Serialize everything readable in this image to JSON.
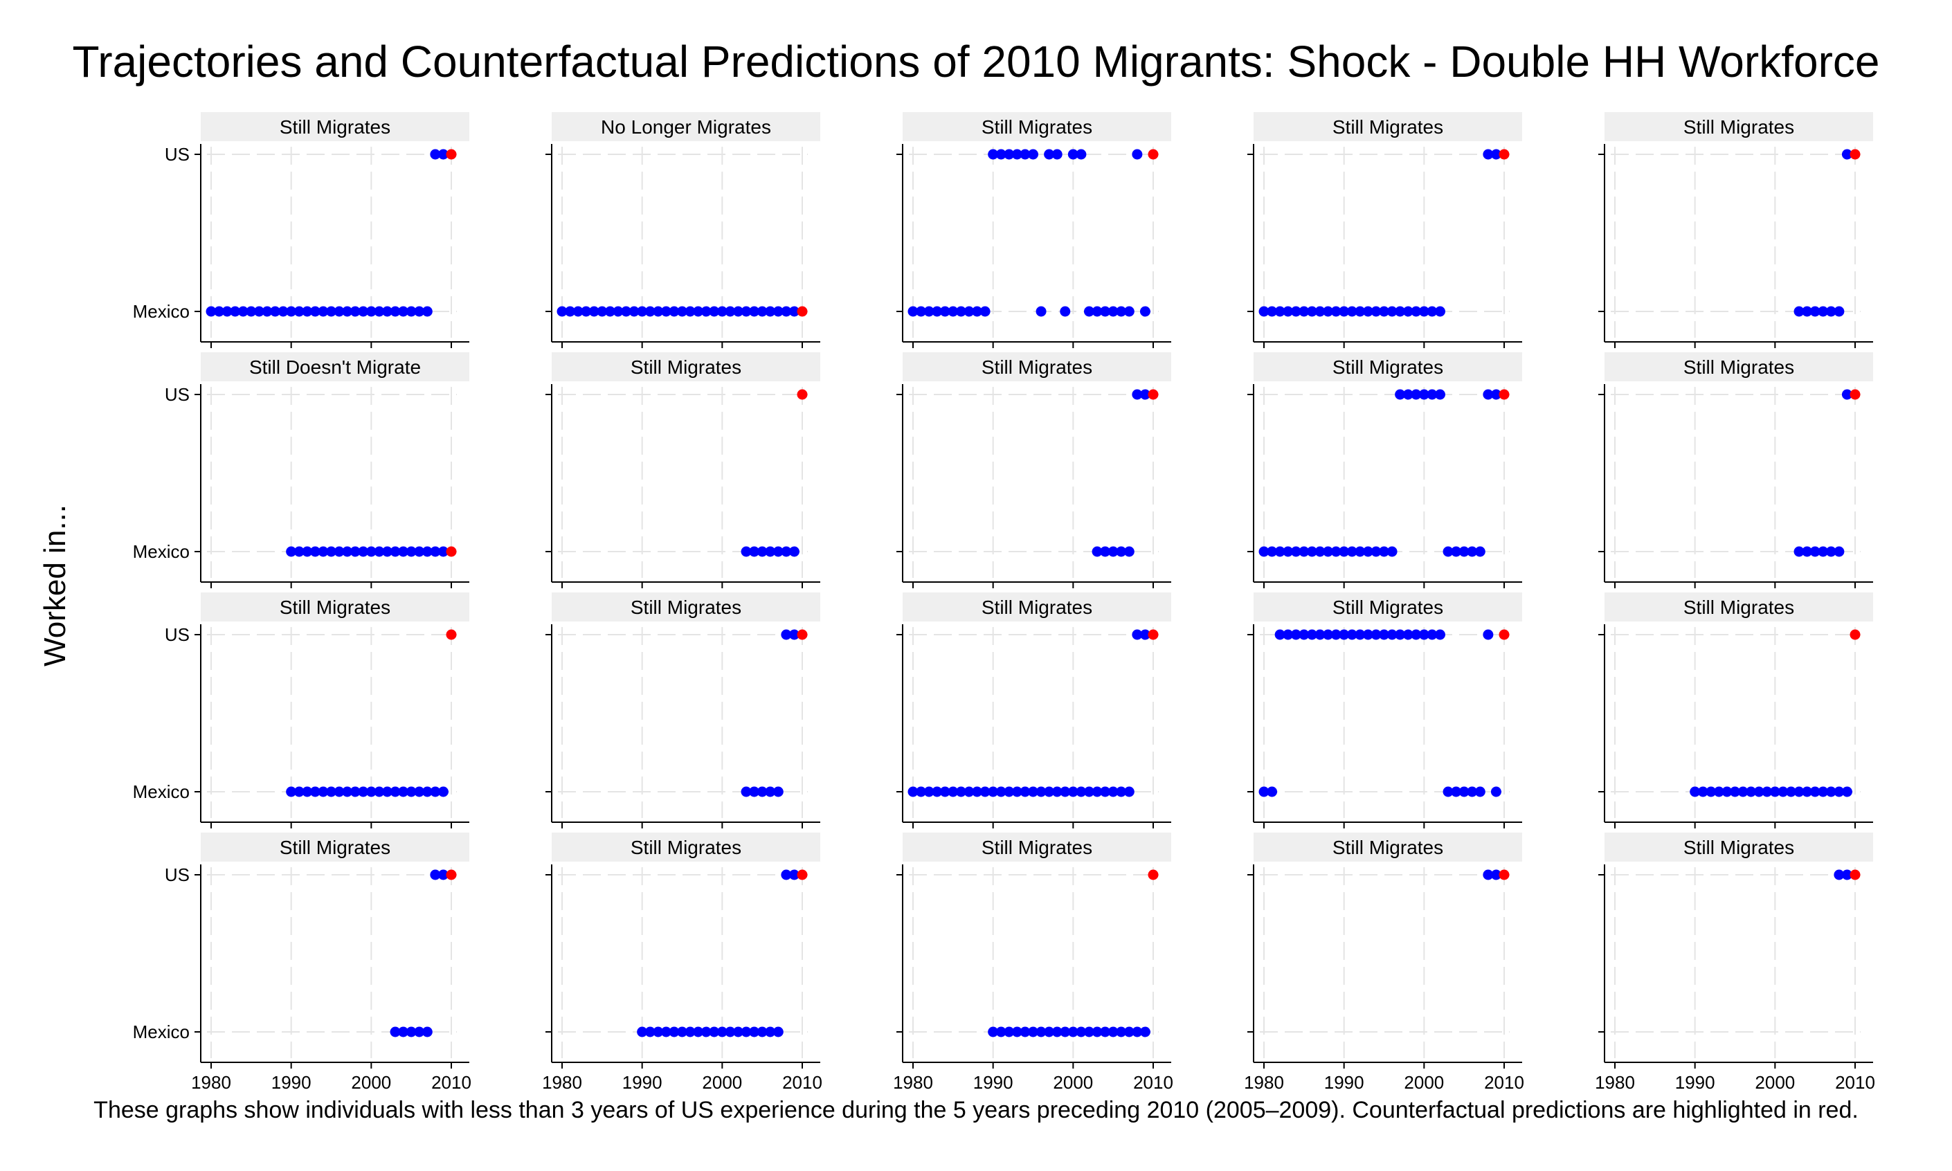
{
  "chart_data": {
    "type": "scatter",
    "title": "Trajectories and Counterfactual Predictions of 2010 Migrants: Shock - Double HH Workforce",
    "ylabel": "Worked in...",
    "y_categories": [
      "Mexico",
      "US"
    ],
    "x_ticks": [
      1980,
      1990,
      2000,
      2010
    ],
    "xlim": [
      1980,
      2010
    ],
    "grid": true,
    "colors": {
      "observed": "#0000ff",
      "counterfactual": "#ff0000",
      "panel_header": "#efefef"
    },
    "legend": "none",
    "panels": [
      {
        "label": "Still Migrates",
        "us": [
          2008,
          2009
        ],
        "mexico": [
          1980,
          1981,
          1982,
          1983,
          1984,
          1985,
          1986,
          1987,
          1988,
          1989,
          1990,
          1991,
          1992,
          1993,
          1994,
          1995,
          1996,
          1997,
          1998,
          1999,
          2000,
          2001,
          2002,
          2003,
          2004,
          2005,
          2006,
          2007
        ],
        "prediction": "US"
      },
      {
        "label": "No Longer Migrates",
        "us": [],
        "mexico": [
          1980,
          1981,
          1982,
          1983,
          1984,
          1985,
          1986,
          1987,
          1988,
          1989,
          1990,
          1991,
          1992,
          1993,
          1994,
          1995,
          1996,
          1997,
          1998,
          1999,
          2000,
          2001,
          2002,
          2003,
          2004,
          2005,
          2006,
          2007,
          2008,
          2009
        ],
        "prediction": "Mexico"
      },
      {
        "label": "Still Migrates",
        "us": [
          1990,
          1991,
          1992,
          1993,
          1994,
          1995,
          1997,
          1998,
          2000,
          2001,
          2008
        ],
        "mexico": [
          1980,
          1981,
          1982,
          1983,
          1984,
          1985,
          1986,
          1987,
          1988,
          1989,
          1996,
          1999,
          2002,
          2003,
          2004,
          2005,
          2006,
          2007,
          2009
        ],
        "prediction": "US"
      },
      {
        "label": "Still Migrates",
        "us": [
          2008,
          2009
        ],
        "mexico": [
          1980,
          1981,
          1982,
          1983,
          1984,
          1985,
          1986,
          1987,
          1988,
          1989,
          1990,
          1991,
          1992,
          1993,
          1994,
          1995,
          1996,
          1997,
          1998,
          1999,
          2000,
          2001,
          2002
        ],
        "prediction": "US"
      },
      {
        "label": "Still Migrates",
        "us": [
          2009
        ],
        "mexico": [
          2003,
          2004,
          2005,
          2006,
          2007,
          2008
        ],
        "prediction": "US"
      },
      {
        "label": "Still Doesn't Migrate",
        "us": [],
        "mexico": [
          1990,
          1991,
          1992,
          1993,
          1994,
          1995,
          1996,
          1997,
          1998,
          1999,
          2000,
          2001,
          2002,
          2003,
          2004,
          2005,
          2006,
          2007,
          2008,
          2009
        ],
        "prediction": "Mexico"
      },
      {
        "label": "Still Migrates",
        "us": [],
        "mexico": [
          2003,
          2004,
          2005,
          2006,
          2007,
          2008,
          2009
        ],
        "prediction": "US"
      },
      {
        "label": "Still Migrates",
        "us": [
          2008,
          2009
        ],
        "mexico": [
          2003,
          2004,
          2005,
          2006,
          2007
        ],
        "prediction": "US"
      },
      {
        "label": "Still Migrates",
        "us": [
          1997,
          1998,
          1999,
          2000,
          2001,
          2002,
          2008,
          2009
        ],
        "mexico": [
          1980,
          1981,
          1982,
          1983,
          1984,
          1985,
          1986,
          1987,
          1988,
          1989,
          1990,
          1991,
          1992,
          1993,
          1994,
          1995,
          1996,
          2003,
          2004,
          2005,
          2006,
          2007
        ],
        "prediction": "US"
      },
      {
        "label": "Still Migrates",
        "us": [
          2009
        ],
        "mexico": [
          2003,
          2004,
          2005,
          2006,
          2007,
          2008
        ],
        "prediction": "US"
      },
      {
        "label": "Still Migrates",
        "us": [],
        "mexico": [
          1990,
          1991,
          1992,
          1993,
          1994,
          1995,
          1996,
          1997,
          1998,
          1999,
          2000,
          2001,
          2002,
          2003,
          2004,
          2005,
          2006,
          2007,
          2008,
          2009
        ],
        "prediction": "US"
      },
      {
        "label": "Still Migrates",
        "us": [
          2008,
          2009
        ],
        "mexico": [
          2003,
          2004,
          2005,
          2006,
          2007
        ],
        "prediction": "US"
      },
      {
        "label": "Still Migrates",
        "us": [
          2008,
          2009
        ],
        "mexico": [
          1980,
          1981,
          1982,
          1983,
          1984,
          1985,
          1986,
          1987,
          1988,
          1989,
          1990,
          1991,
          1992,
          1993,
          1994,
          1995,
          1996,
          1997,
          1998,
          1999,
          2000,
          2001,
          2002,
          2003,
          2004,
          2005,
          2006,
          2007
        ],
        "prediction": "US"
      },
      {
        "label": "Still Migrates",
        "us": [
          1982,
          1983,
          1984,
          1985,
          1986,
          1987,
          1988,
          1989,
          1990,
          1991,
          1992,
          1993,
          1994,
          1995,
          1996,
          1997,
          1998,
          1999,
          2000,
          2001,
          2002,
          2008
        ],
        "mexico": [
          1980,
          1981,
          2003,
          2004,
          2005,
          2006,
          2007,
          2009
        ],
        "prediction": "US"
      },
      {
        "label": "Still Migrates",
        "us": [],
        "mexico": [
          1990,
          1991,
          1992,
          1993,
          1994,
          1995,
          1996,
          1997,
          1998,
          1999,
          2000,
          2001,
          2002,
          2003,
          2004,
          2005,
          2006,
          2007,
          2008,
          2009
        ],
        "prediction": "US"
      },
      {
        "label": "Still Migrates",
        "us": [
          2008,
          2009
        ],
        "mexico": [
          2003,
          2004,
          2005,
          2006,
          2007
        ],
        "prediction": "US"
      },
      {
        "label": "Still Migrates",
        "us": [
          2008,
          2009
        ],
        "mexico": [
          1990,
          1991,
          1992,
          1993,
          1994,
          1995,
          1996,
          1997,
          1998,
          1999,
          2000,
          2001,
          2002,
          2003,
          2004,
          2005,
          2006,
          2007
        ],
        "prediction": "US"
      },
      {
        "label": "Still Migrates",
        "us": [],
        "mexico": [
          1990,
          1991,
          1992,
          1993,
          1994,
          1995,
          1996,
          1997,
          1998,
          1999,
          2000,
          2001,
          2002,
          2003,
          2004,
          2005,
          2006,
          2007,
          2008,
          2009
        ],
        "prediction": "US"
      },
      {
        "label": "Still Migrates",
        "us": [
          2008,
          2009
        ],
        "mexico": [],
        "prediction": "US"
      },
      {
        "label": "Still Migrates",
        "us": [
          2008,
          2009
        ],
        "mexico": [],
        "prediction": "US"
      }
    ]
  },
  "footnote": "These graphs show individuals with less than 3 years of US experience during the 5 years preceding 2010 (2005–2009). Counterfactual predictions are highlighted in red."
}
